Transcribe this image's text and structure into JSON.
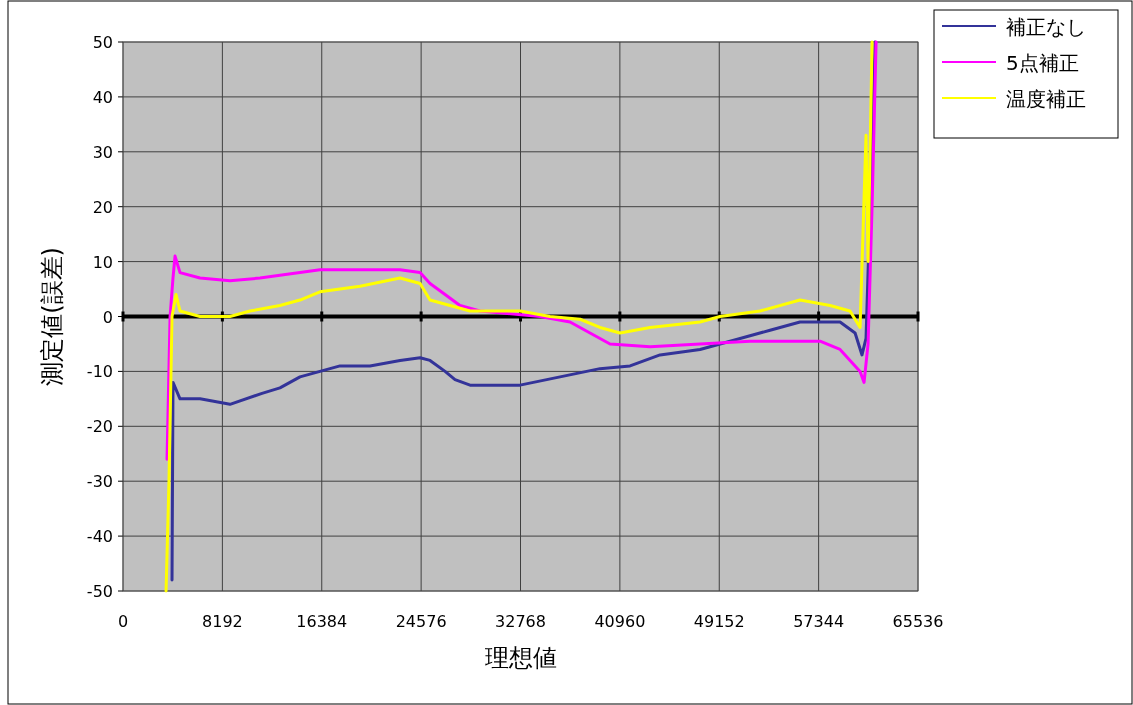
{
  "chart_data": {
    "type": "line",
    "xlabel": "理想値",
    "ylabel": "測定値(誤差)",
    "xlim": [
      0,
      65536
    ],
    "xticks": [
      0,
      8192,
      16384,
      24576,
      32768,
      40960,
      49152,
      57344,
      65536
    ],
    "ylim": [
      -50,
      50
    ],
    "yticks": [
      -50,
      -40,
      -30,
      -20,
      -10,
      0,
      10,
      20,
      30,
      40,
      50
    ],
    "grid": true,
    "legend": "top right",
    "series": [
      {
        "name": "補正なし",
        "color": "#333399",
        "x": [
          4040,
          4122,
          4700,
          6350,
          8820,
          11460,
          12940,
          14590,
          16240,
          17890,
          20360,
          22840,
          24490,
          25310,
          26550,
          27370,
          28610,
          32730,
          36030,
          39320,
          41800,
          44270,
          47570,
          50870,
          53340,
          55810,
          59110,
          60350,
          60920,
          61250,
          62000
        ],
        "values": [
          -48,
          -12,
          -15,
          -15,
          -16,
          -14,
          -13,
          -11,
          -10,
          -9,
          -9,
          -8,
          -7.5,
          -8,
          -10,
          -11.5,
          -12.5,
          -12.5,
          -11,
          -9.5,
          -9,
          -7,
          -6,
          -4,
          -2.5,
          -1,
          -1,
          -3,
          -7,
          -4,
          50
        ]
      },
      {
        "name": "5点補正",
        "color": "#ff00ff",
        "x": [
          3630,
          3880,
          4120,
          4290,
          4700,
          6350,
          8820,
          11290,
          14590,
          16240,
          19540,
          22840,
          24490,
          25310,
          26550,
          27780,
          29430,
          34380,
          36850,
          38500,
          40150,
          43450,
          47570,
          51690,
          57460,
          59110,
          60760,
          61090,
          61420,
          61750,
          62080
        ],
        "values": [
          -26,
          0,
          7,
          11,
          8,
          7,
          6.5,
          7,
          8,
          8.5,
          8.5,
          8.5,
          8,
          6,
          4,
          2,
          1,
          0,
          -1,
          -3,
          -5,
          -5.5,
          -5,
          -4.5,
          -4.5,
          -6,
          -10,
          -12,
          -5,
          20,
          50
        ]
      },
      {
        "name": "温度補正",
        "color": "#ffff00",
        "x": [
          3550,
          3790,
          4040,
          4370,
          4700,
          6350,
          8820,
          10470,
          12940,
          14590,
          16240,
          19540,
          22840,
          24490,
          25310,
          26960,
          28610,
          32730,
          35200,
          37680,
          39320,
          40970,
          43450,
          47570,
          49220,
          52510,
          55810,
          58290,
          59930,
          60760,
          61250,
          61420,
          61750
        ],
        "values": [
          -50,
          -30,
          0,
          4,
          1,
          0,
          0,
          1,
          2,
          3,
          4.5,
          5.5,
          7,
          6,
          3,
          2,
          1,
          1,
          0,
          -0.5,
          -2,
          -3,
          -2,
          -1,
          0,
          1,
          3,
          2,
          1,
          -2,
          33,
          10,
          50
        ]
      }
    ]
  }
}
